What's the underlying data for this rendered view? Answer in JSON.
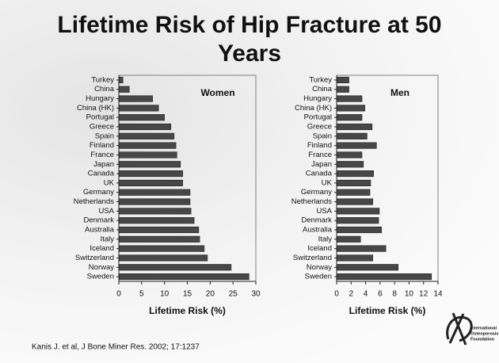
{
  "title": "Lifetime Risk of Hip Fracture at 50 Years",
  "source": "Kanis J. et al, J Bone Miner Res. 2002; 17:1237",
  "logo": [
    "International",
    "Osteoporosis",
    "Foundation"
  ],
  "chart_data": [
    {
      "type": "bar",
      "orientation": "horizontal",
      "title": "Women",
      "xlabel": "Lifetime Risk (%)",
      "categories": [
        "Turkey",
        "China",
        "Hungary",
        "China (HK)",
        "Portugal",
        "Greece",
        "Spain",
        "Finland",
        "France",
        "Japan",
        "Canada",
        "UK",
        "Germany",
        "Netherlands",
        "USA",
        "Denmark",
        "Australia",
        "Italy",
        "Iceland",
        "Switzerland",
        "Norway",
        "Sweden"
      ],
      "values": [
        0.9,
        2.3,
        7.4,
        8.7,
        10,
        11.4,
        12.1,
        12.5,
        12.7,
        13.5,
        14,
        14,
        15.6,
        15.6,
        15.8,
        16.5,
        17.5,
        17.7,
        18.7,
        19.4,
        24.6,
        28.5
      ],
      "color": "#474747",
      "xlim": [
        0,
        30
      ],
      "xticks": [
        0,
        5,
        10,
        15,
        20,
        25,
        30
      ]
    },
    {
      "type": "bar",
      "orientation": "horizontal",
      "title": "Men",
      "xlabel": "Lifetime Risk (%)",
      "categories": [
        "Turkey",
        "China",
        "Hungary",
        "China (HK)",
        "Portugal",
        "Greece",
        "Spain",
        "Finland",
        "France",
        "Japan",
        "Canada",
        "UK",
        "Germany",
        "Netherlands",
        "USA",
        "Denmark",
        "Australia",
        "Italy",
        "Iceland",
        "Switzerland",
        "Norway",
        "Sweden"
      ],
      "values": [
        1.7,
        1.7,
        3.5,
        3.9,
        3.5,
        4.9,
        4.2,
        5.5,
        3.5,
        3.7,
        5.1,
        4.7,
        4.6,
        5.0,
        5.9,
        5.8,
        6.2,
        3.3,
        6.8,
        5.0,
        8.5,
        13.1
      ],
      "color": "#474747",
      "xlim": [
        0,
        14
      ],
      "xticks": [
        0,
        2,
        4,
        6,
        8,
        10,
        12,
        14
      ]
    }
  ]
}
